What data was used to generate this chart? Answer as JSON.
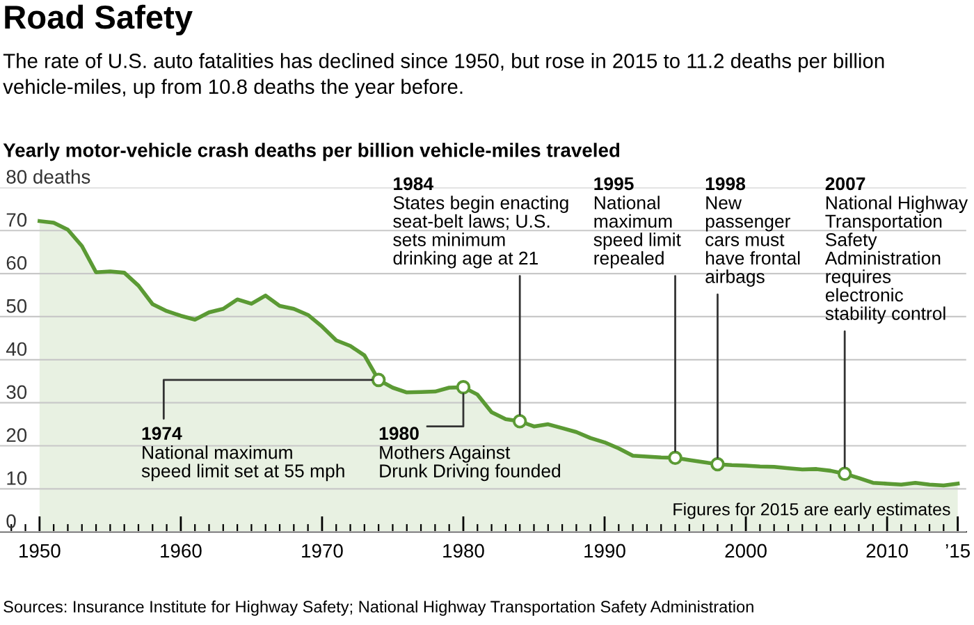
{
  "chart_data": {
    "type": "area",
    "title": "Road Safety",
    "subtitle": "The rate of U.S. auto fatalities has declined since 1950, but rose in 2015 to 11.2 deaths per billion vehicle-miles, up from 10.8 deaths the year before.",
    "ylabel": "Yearly motor-vehicle crash deaths per billion vehicle-miles traveled",
    "x": [
      1950,
      1951,
      1952,
      1953,
      1954,
      1955,
      1956,
      1957,
      1958,
      1959,
      1960,
      1961,
      1962,
      1963,
      1964,
      1965,
      1966,
      1967,
      1968,
      1969,
      1970,
      1971,
      1972,
      1973,
      1974,
      1975,
      1976,
      1977,
      1978,
      1979,
      1980,
      1981,
      1982,
      1983,
      1984,
      1985,
      1986,
      1987,
      1988,
      1989,
      1990,
      1991,
      1992,
      1993,
      1994,
      1995,
      1996,
      1997,
      1998,
      1999,
      2000,
      2001,
      2002,
      2003,
      2004,
      2005,
      2006,
      2007,
      2008,
      2009,
      2010,
      2011,
      2012,
      2013,
      2014,
      2015
    ],
    "series": [
      {
        "color": "#5b9a34",
        "values": [
          72.2,
          71.8,
          70.2,
          66.4,
          60.3,
          60.5,
          60.2,
          57.2,
          52.9,
          51.3,
          50.2,
          49.3,
          51.0,
          51.8,
          54.0,
          53.0,
          54.9,
          52.5,
          51.8,
          50.4,
          47.7,
          44.5,
          43.2,
          41.0,
          35.3,
          33.5,
          32.4,
          32.5,
          32.6,
          33.5,
          33.6,
          31.9,
          27.8,
          26.2,
          25.7,
          24.5,
          25.0,
          24.1,
          23.2,
          21.8,
          20.8,
          19.4,
          17.7,
          17.5,
          17.3,
          17.2,
          16.7,
          16.2,
          15.7,
          15.5,
          15.4,
          15.2,
          15.1,
          14.8,
          14.5,
          14.6,
          14.2,
          13.5,
          12.5,
          11.4,
          11.2,
          11.0,
          11.4,
          11.0,
          10.8,
          11.2
        ]
      }
    ],
    "xlim": [
      1947.2,
      2015.6
    ],
    "ylim": [
      0,
      80
    ],
    "xticks": [
      1950,
      1960,
      1970,
      1980,
      1990,
      2000,
      2010,
      {
        "value": 2015,
        "label": "’15"
      }
    ],
    "yticks": [
      0,
      10,
      20,
      30,
      40,
      50,
      60,
      70,
      {
        "value": 80,
        "label": "80 deaths"
      }
    ],
    "grid": "y",
    "annotations": [
      {
        "text": "1974\nNational maximum\nspeed limit set at 55 mph",
        "x": 1974,
        "y": 35.3
      },
      {
        "text": "1980\nMothers Against\nDrunk Driving founded",
        "x": 1980,
        "y": 33.6
      },
      {
        "text": "1984\nStates begin enacting\nseat-belt laws; U.S.\nsets minimum\ndrinking age at 21",
        "x": 1984,
        "y": 25.7
      },
      {
        "text": "1995\nNational\nmaximum\nspeed limit\nrepealed",
        "x": 1995,
        "y": 17.2
      },
      {
        "text": "1998\nNew\npassenger\ncars must\nhave frontal\nairbags",
        "x": 1998,
        "y": 15.7
      },
      {
        "text": "2007\nNational Highway\nTransportation\nSafety\nAdministration\nrequires\nelectronic\nstability control",
        "x": 2007,
        "y": 13.5
      },
      "Figures for 2015 are early estimates",
      "Sources: Insurance Institute for Highway Safety; National Highway Transportation Safety Administration"
    ]
  }
}
